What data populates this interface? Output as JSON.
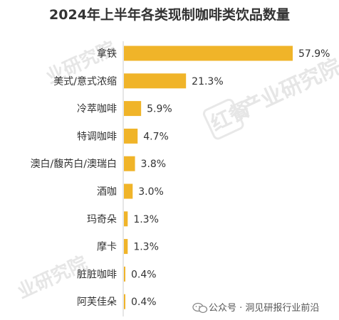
{
  "chart_data": {
    "type": "bar",
    "orientation": "horizontal",
    "title": "2024年上半年各类现制咖啡类饮品数量",
    "categories": [
      "拿铁",
      "美式/意式浓缩",
      "冷萃咖啡",
      "特调咖啡",
      "澳白/馥芮白/澳瑞白",
      "酒咖",
      "玛奇朵",
      "摩卡",
      "脏脏咖啡",
      "阿芙佳朵"
    ],
    "values": [
      57.9,
      21.3,
      5.9,
      4.7,
      3.8,
      3.0,
      1.3,
      1.3,
      0.4,
      0.4
    ],
    "value_labels": [
      "57.9%",
      "21.3%",
      "5.9%",
      "4.7%",
      "3.8%",
      "3.0%",
      "1.3%",
      "1.3%",
      "0.4%",
      "0.4%"
    ],
    "unit": "%",
    "xlabel": "",
    "ylabel": "",
    "grid": false,
    "legend": "none",
    "bar_color": "#f0b429"
  },
  "watermark": {
    "brand": "红餐",
    "text_right": "产业研究院",
    "text_left": "业研究院",
    "text_bottom_left": "业研究院"
  },
  "source": {
    "icon": "wechat-icon",
    "text": "公众号 · 洞见研报行业前沿"
  }
}
